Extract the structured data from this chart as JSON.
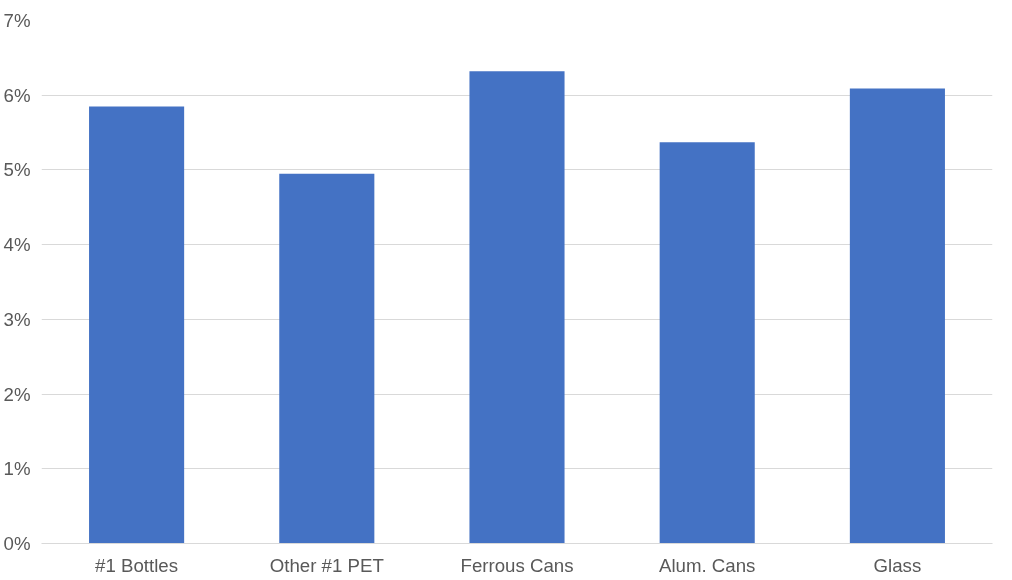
{
  "chart_data": {
    "type": "bar",
    "categories": [
      "#1 Bottles",
      "Other #1 PET",
      "Ferrous Cans",
      "Alum. Cans",
      "Glass"
    ],
    "values": [
      5.85,
      4.95,
      6.32,
      5.37,
      6.09
    ],
    "color": "#4472c4",
    "ylim": [
      0,
      7
    ],
    "yticks": [
      {
        "value": 0,
        "label": "0%"
      },
      {
        "value": 1,
        "label": "1%"
      },
      {
        "value": 2,
        "label": "2%"
      },
      {
        "value": 3,
        "label": "3%"
      },
      {
        "value": 4,
        "label": "4%"
      },
      {
        "value": 5,
        "label": "5%"
      },
      {
        "value": 6,
        "label": "6%"
      },
      {
        "value": 7,
        "label": "7%"
      }
    ],
    "grid": "y"
  }
}
